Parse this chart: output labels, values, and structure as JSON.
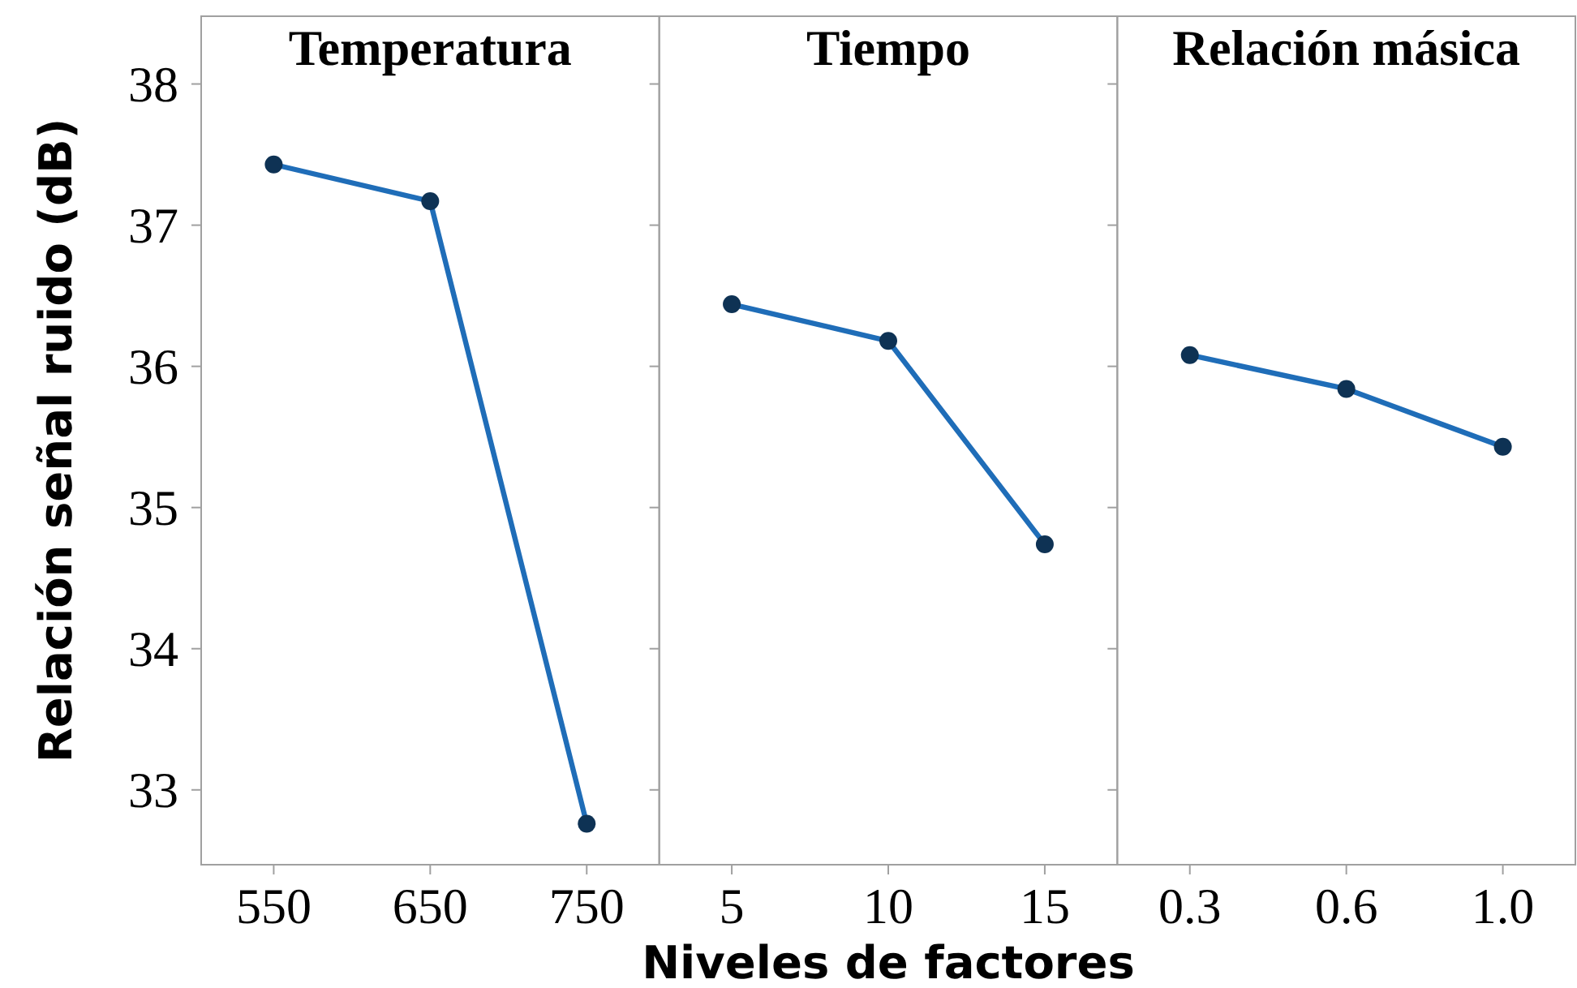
{
  "chart_data": [
    {
      "type": "line",
      "title": "Temperatura",
      "ylabel": "Relación señal ruido (dB)",
      "categories": [
        "550",
        "650",
        "750"
      ],
      "series": [
        {
          "color": "#1f6db8",
          "values": [
            37.43,
            37.17,
            32.76
          ]
        }
      ],
      "ylim": [
        32.47,
        38.48
      ],
      "yticks": [
        33,
        34,
        35,
        36,
        37,
        38
      ],
      "marker": "circle",
      "grid": false
    },
    {
      "type": "line",
      "title": "Tiempo",
      "xlabel": "Niveles de factores",
      "categories": [
        "5",
        "10",
        "15"
      ],
      "series": [
        {
          "color": "#1f6db8",
          "values": [
            36.44,
            36.18,
            34.74
          ]
        }
      ],
      "ylim": [
        32.47,
        38.48
      ],
      "yticks": [
        33,
        34,
        35,
        36,
        37,
        38
      ],
      "tick_labels": "x",
      "marker": "circle",
      "grid": false
    },
    {
      "type": "line",
      "title": "Relación másica",
      "categories": [
        "0.3",
        "0.6",
        "1.0"
      ],
      "series": [
        {
          "color": "#1f6db8",
          "values": [
            36.08,
            35.84,
            35.43
          ]
        }
      ],
      "ylim": [
        32.47,
        38.48
      ],
      "yticks": [
        33,
        34,
        35,
        36,
        37,
        38
      ],
      "tick_labels": "x",
      "marker": "circle",
      "grid": false
    }
  ]
}
